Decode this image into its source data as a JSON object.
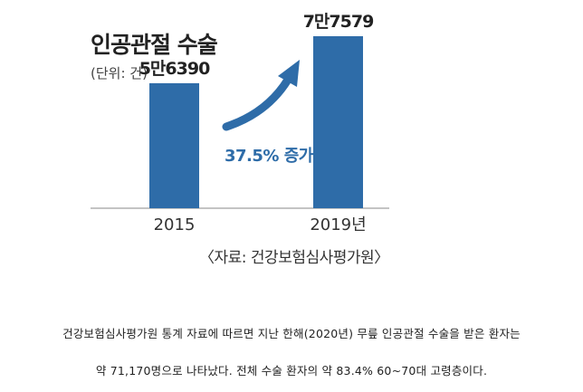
{
  "chart_data": {
    "type": "bar",
    "title": "인공관절 수술",
    "unit_label": "(단위: 건)",
    "categories": [
      "2015",
      "2019년"
    ],
    "values": [
      56390,
      77579
    ],
    "value_labels": [
      "5만6390",
      "7만7579"
    ],
    "annotation": "37.5% 증가",
    "source": "〈자료: 건강보험심사평가원〉",
    "colors": {
      "bar": "#2e6ca8",
      "arrow": "#2e6ca8",
      "annotation_text": "#2e6ca8",
      "axis": "#888888"
    }
  },
  "caption": {
    "line1": "건강보험심사평가원 통계 자료에 따르면 지난 한해(2020년) 무릎 인공관절 수술을 받은 환자는",
    "line2": "약 71,170명으로 나타났다. 전체 수술 환자의 약 83.4% 60~70대 고령층이다."
  }
}
